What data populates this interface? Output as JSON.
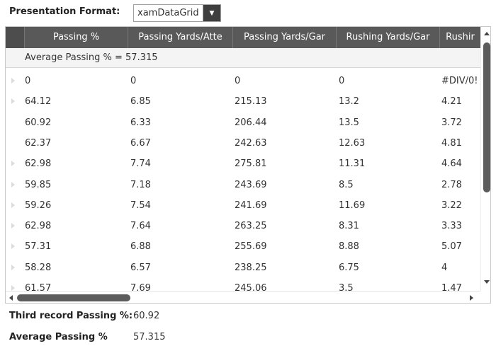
{
  "presentation_format": {
    "label": "Presentation Format:",
    "selected": "xamDataGrid"
  },
  "grid": {
    "columns": [
      "Passing %",
      "Passing Yards/Atte",
      "Passing Yards/Gar",
      "Rushing Yards/Gar",
      "Rushir"
    ],
    "summary": "Average Passing % = 57.315",
    "rows": [
      [
        "0",
        "0",
        "0",
        "0",
        "#DIV/0!"
      ],
      [
        "64.12",
        "6.85",
        "215.13",
        "13.2",
        "4.21"
      ],
      [
        "60.92",
        "6.33",
        "206.44",
        "13.5",
        "3.72"
      ],
      [
        "62.37",
        "6.67",
        "242.63",
        "12.63",
        "4.81"
      ],
      [
        "62.98",
        "7.74",
        "275.81",
        "11.31",
        "4.64"
      ],
      [
        "59.85",
        "7.18",
        "243.69",
        "8.5",
        "2.78"
      ],
      [
        "59.26",
        "7.54",
        "241.69",
        "11.69",
        "3.22"
      ],
      [
        "62.98",
        "7.64",
        "263.25",
        "8.31",
        "3.33"
      ],
      [
        "57.31",
        "6.88",
        "255.69",
        "8.88",
        "5.07"
      ],
      [
        "58.28",
        "6.57",
        "238.25",
        "6.75",
        "4"
      ],
      [
        "61.57",
        "7.69",
        "245.06",
        "3.5",
        "1.47"
      ]
    ],
    "row_indicator_visible": [
      true,
      true,
      false,
      false,
      true,
      true,
      true,
      true,
      true,
      true,
      true
    ]
  },
  "footer": {
    "third_record_label": "Third record Passing %:",
    "third_record_value": "60.92",
    "average_label": "Average Passing %",
    "average_value": "57.315"
  },
  "icons": {
    "combo_arrow": "chevron-down-icon",
    "scroll_up": "arrow-up-icon",
    "scroll_down": "arrow-down-icon",
    "scroll_left": "arrow-left-icon",
    "scroll_right": "arrow-right-icon"
  },
  "colors": {
    "header_bg": "#595959",
    "header_text": "#ffffff",
    "summary_bg": "#f4f4f4",
    "scroll_thumb": "#5c5c5c"
  }
}
